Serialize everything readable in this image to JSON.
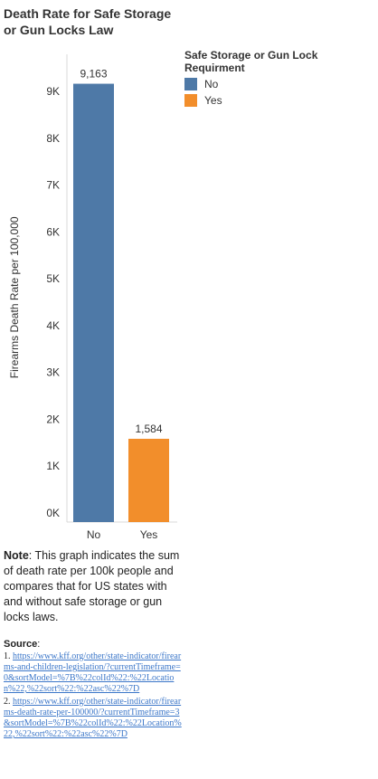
{
  "title_line1": "Death Rate for Safe Storage",
  "title_line2": "or Gun Locks Law",
  "legend": {
    "title": "Safe Storage or Gun Lock Requirment",
    "items": [
      {
        "label": "No",
        "color": "#4e79a7"
      },
      {
        "label": "Yes",
        "color": "#f28e2b"
      }
    ]
  },
  "chart_data": {
    "type": "bar",
    "categories": [
      "No",
      "Yes"
    ],
    "values": [
      9163,
      1584
    ],
    "value_labels": [
      "9,163",
      "1,584"
    ],
    "colors": [
      "#4e79a7",
      "#f28e2b"
    ],
    "ylabel": "Firearms Death Rate per 100,000",
    "yticks": [
      0,
      1000,
      2000,
      3000,
      4000,
      5000,
      6000,
      7000,
      8000,
      9000
    ],
    "ytick_labels": [
      "0K",
      "1K",
      "2K",
      "3K",
      "4K",
      "5K",
      "6K",
      "7K",
      "8K",
      "9K"
    ],
    "ylim": [
      0,
      10000
    ]
  },
  "note": {
    "label": "Note",
    "text": ": This graph indicates the sum of death rate per 100k people and compares that for US states with and without safe storage or gun locks laws."
  },
  "source": {
    "label": "Source",
    "suffix": ":",
    "items": [
      {
        "num": "1.",
        "url": "https://www.kff.org/other/state-indicator/firearms-and-children-legislation/?currentTimeframe=0&sortModel=%7B%22colId%22:%22Location%22,%22sort%22:%22asc%22%7D"
      },
      {
        "num": "2.",
        "url": "https://www.kff.org/other/state-indicator/firearms-death-rate-per-100000/?currentTimeframe=3&sortModel=%7B%22colId%22:%22Location%22,%22sort%22:%22asc%22%7D"
      }
    ]
  }
}
